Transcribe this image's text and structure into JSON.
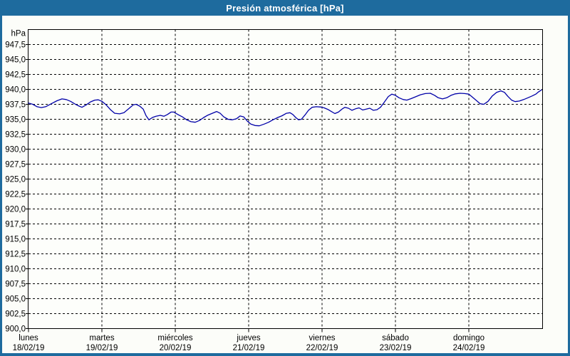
{
  "window": {
    "title": "Presión atmosférica [hPa]",
    "title_bar_color": "#1e6b9e",
    "border_color": "#1e6b9e",
    "content_background": "#fcfdf9"
  },
  "chart_data": {
    "type": "line",
    "title": "Presión atmosférica [hPa]",
    "unit_label": "hPa",
    "line_color": "#0000a8",
    "grid": "dashed",
    "legend": "none",
    "ylabel": "hPa",
    "xlabel": "",
    "ylim": [
      900,
      950
    ],
    "y_tick_step": 2.5,
    "y_tick_labels": [
      "947,5",
      "945,0",
      "942,5",
      "940,0",
      "937,5",
      "935,0",
      "932,5",
      "930,0",
      "927,5",
      "925,0",
      "922,5",
      "920,0",
      "917,5",
      "915,0",
      "912,5",
      "910,0",
      "907,5",
      "905,0",
      "902,5",
      "900,0"
    ],
    "x_range_days": [
      0,
      7
    ],
    "x_days": [
      {
        "name": "lunes",
        "date": "18/02/19"
      },
      {
        "name": "martes",
        "date": "19/02/19"
      },
      {
        "name": "miércoles",
        "date": "20/02/19"
      },
      {
        "name": "jueves",
        "date": "21/02/19"
      },
      {
        "name": "viernes",
        "date": "22/02/19"
      },
      {
        "name": "sábado",
        "date": "23/02/19"
      },
      {
        "name": "domingo",
        "date": "24/02/19"
      }
    ],
    "series": [
      {
        "name": "Presión atmosférica",
        "x_unit": "days since 18/02/19 00:00",
        "y_unit": "hPa",
        "points": [
          [
            0.0,
            937.7
          ],
          [
            0.058,
            937.5
          ],
          [
            0.117,
            937.1
          ],
          [
            0.175,
            936.95
          ],
          [
            0.233,
            937.1
          ],
          [
            0.311,
            937.6
          ],
          [
            0.388,
            938.1
          ],
          [
            0.456,
            938.4
          ],
          [
            0.515,
            938.3
          ],
          [
            0.573,
            938.0
          ],
          [
            0.641,
            937.5
          ],
          [
            0.689,
            937.2
          ],
          [
            0.728,
            937.0
          ],
          [
            0.786,
            937.4
          ],
          [
            0.845,
            937.9
          ],
          [
            0.903,
            938.2
          ],
          [
            0.951,
            938.25
          ],
          [
            1.0,
            938.0
          ],
          [
            1.058,
            937.4
          ],
          [
            1.117,
            936.6
          ],
          [
            1.175,
            936.0
          ],
          [
            1.243,
            935.9
          ],
          [
            1.301,
            936.1
          ],
          [
            1.369,
            936.8
          ],
          [
            1.427,
            937.4
          ],
          [
            1.466,
            937.5
          ],
          [
            1.515,
            937.2
          ],
          [
            1.563,
            936.7
          ],
          [
            1.602,
            935.6
          ],
          [
            1.641,
            934.9
          ],
          [
            1.689,
            935.3
          ],
          [
            1.738,
            935.5
          ],
          [
            1.796,
            935.65
          ],
          [
            1.845,
            935.5
          ],
          [
            1.893,
            935.8
          ],
          [
            1.942,
            936.2
          ],
          [
            1.981,
            936.2
          ],
          [
            2.0,
            936.05
          ],
          [
            2.049,
            935.7
          ],
          [
            2.097,
            935.4
          ],
          [
            2.155,
            934.9
          ],
          [
            2.214,
            934.6
          ],
          [
            2.272,
            934.5
          ],
          [
            2.33,
            934.8
          ],
          [
            2.388,
            935.3
          ],
          [
            2.447,
            935.7
          ],
          [
            2.505,
            936.0
          ],
          [
            2.563,
            936.3
          ],
          [
            2.612,
            936.0
          ],
          [
            2.66,
            935.4
          ],
          [
            2.718,
            935.0
          ],
          [
            2.777,
            934.9
          ],
          [
            2.835,
            935.1
          ],
          [
            2.883,
            935.55
          ],
          [
            2.932,
            935.4
          ],
          [
            2.981,
            934.7
          ],
          [
            3.029,
            934.2
          ],
          [
            3.087,
            933.95
          ],
          [
            3.146,
            933.9
          ],
          [
            3.214,
            934.2
          ],
          [
            3.272,
            934.5
          ],
          [
            3.33,
            934.9
          ],
          [
            3.398,
            935.3
          ],
          [
            3.456,
            935.6
          ],
          [
            3.515,
            936.0
          ],
          [
            3.563,
            936.1
          ],
          [
            3.602,
            935.8
          ],
          [
            3.641,
            935.3
          ],
          [
            3.68,
            934.9
          ],
          [
            3.718,
            935.0
          ],
          [
            3.767,
            935.7
          ],
          [
            3.816,
            936.5
          ],
          [
            3.864,
            937.0
          ],
          [
            3.922,
            937.1
          ],
          [
            3.981,
            937.05
          ],
          [
            4.029,
            936.9
          ],
          [
            4.078,
            936.65
          ],
          [
            4.126,
            936.3
          ],
          [
            4.175,
            935.95
          ],
          [
            4.223,
            936.2
          ],
          [
            4.272,
            936.7
          ],
          [
            4.311,
            937.0
          ],
          [
            4.359,
            936.85
          ],
          [
            4.408,
            936.5
          ],
          [
            4.456,
            936.75
          ],
          [
            4.505,
            936.9
          ],
          [
            4.553,
            936.55
          ],
          [
            4.602,
            936.7
          ],
          [
            4.65,
            936.85
          ],
          [
            4.699,
            936.5
          ],
          [
            4.748,
            936.6
          ],
          [
            4.796,
            937.0
          ],
          [
            4.845,
            937.8
          ],
          [
            4.903,
            938.8
          ],
          [
            4.951,
            939.2
          ],
          [
            5.0,
            939.0
          ],
          [
            5.049,
            938.6
          ],
          [
            5.107,
            938.3
          ],
          [
            5.155,
            938.2
          ],
          [
            5.214,
            938.45
          ],
          [
            5.282,
            938.8
          ],
          [
            5.34,
            939.1
          ],
          [
            5.408,
            939.3
          ],
          [
            5.476,
            939.35
          ],
          [
            5.534,
            939.0
          ],
          [
            5.583,
            938.6
          ],
          [
            5.641,
            938.4
          ],
          [
            5.699,
            938.6
          ],
          [
            5.757,
            939.0
          ],
          [
            5.816,
            939.25
          ],
          [
            5.883,
            939.35
          ],
          [
            5.942,
            939.3
          ],
          [
            6.0,
            939.2
          ],
          [
            6.049,
            938.7
          ],
          [
            6.107,
            938.1
          ],
          [
            6.155,
            937.6
          ],
          [
            6.204,
            937.5
          ],
          [
            6.262,
            938.0
          ],
          [
            6.32,
            938.9
          ],
          [
            6.379,
            939.5
          ],
          [
            6.437,
            939.75
          ],
          [
            6.485,
            939.5
          ],
          [
            6.534,
            938.8
          ],
          [
            6.583,
            938.2
          ],
          [
            6.631,
            937.95
          ],
          [
            6.689,
            938.05
          ],
          [
            6.748,
            938.3
          ],
          [
            6.806,
            938.6
          ],
          [
            6.864,
            938.9
          ],
          [
            6.913,
            939.2
          ],
          [
            6.951,
            939.6
          ],
          [
            6.99,
            939.9
          ]
        ]
      }
    ]
  }
}
